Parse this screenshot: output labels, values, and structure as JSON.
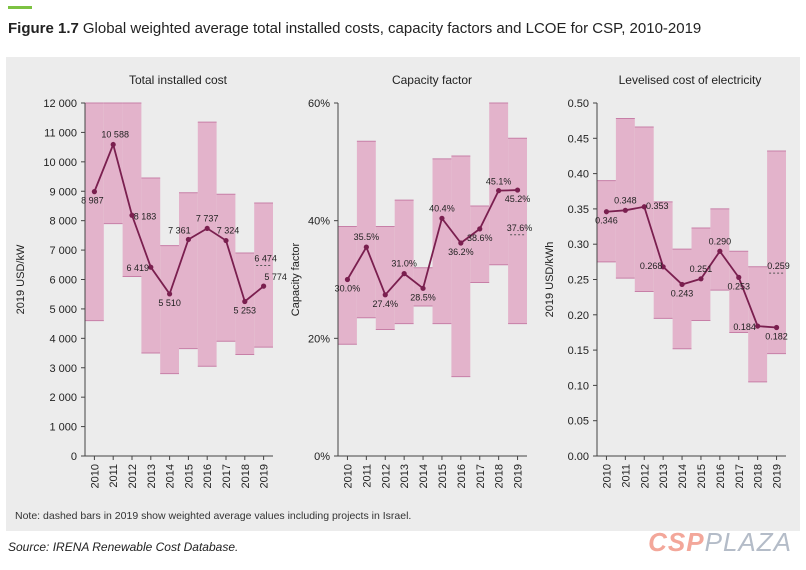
{
  "figure": {
    "label": "Figure 1.7",
    "title": "Global weighted average total installed costs, capacity factors and LCOE for CSP, 2010-2019",
    "note": "Note: dashed bars in 2019 show weighted average values including projects in Israel.",
    "source": "Source: IRENA Renewable Cost Database.",
    "watermark_a": "CSP",
    "watermark_b": "PLAZA"
  },
  "colors": {
    "band": "#e3b3cb",
    "band_edge": "#c77fa7",
    "line": "#7a1f4f",
    "panel": "#ececec"
  },
  "chart_data": [
    {
      "type": "line",
      "title": "Total installed cost",
      "ylabel": "2019 USD/kW",
      "ylim": [
        0,
        12000
      ],
      "yticks": [
        0,
        1000,
        2000,
        3000,
        4000,
        5000,
        6000,
        7000,
        8000,
        9000,
        10000,
        11000,
        12000
      ],
      "ytick_labels": [
        "0",
        "1 000",
        "2 000",
        "3 000",
        "4 000",
        "5 000",
        "6 000",
        "7 000",
        "8 000",
        "9 000",
        "10 000",
        "11 000",
        "12 000"
      ],
      "categories": [
        "2010",
        "2011",
        "2012",
        "2013",
        "2014",
        "2015",
        "2016",
        "2017",
        "2018",
        "2019"
      ],
      "values": [
        8987,
        10588,
        8183,
        6419,
        5510,
        7361,
        7737,
        7324,
        5253,
        5774
      ],
      "labels": [
        "8 987",
        "10 588",
        "8 183",
        "6 419",
        "5 510",
        "7 361",
        "7 737",
        "7 324",
        "5 253",
        "5 774"
      ],
      "range_low": [
        4600,
        7900,
        6100,
        3500,
        2800,
        3650,
        3050,
        3900,
        3450,
        3700
      ],
      "range_high": [
        12000,
        12000,
        12000,
        9450,
        7150,
        8950,
        11350,
        8900,
        6900,
        8600
      ],
      "israel_value": 6474,
      "israel_label": "6 474"
    },
    {
      "type": "line",
      "title": "Capacity factor",
      "ylabel": "Capacity factor",
      "ylim": [
        0,
        0.6
      ],
      "yticks": [
        0,
        0.2,
        0.4,
        0.6
      ],
      "ytick_labels": [
        "0%",
        "20%",
        "40%",
        "60%"
      ],
      "categories": [
        "2010",
        "2011",
        "2012",
        "2013",
        "2014",
        "2015",
        "2016",
        "2017",
        "2018",
        "2019"
      ],
      "values": [
        0.3,
        0.355,
        0.274,
        0.31,
        0.285,
        0.404,
        0.362,
        0.386,
        0.451,
        0.452
      ],
      "labels": [
        "30.0%",
        "35.5%",
        "27.4%",
        "31.0%",
        "28.5%",
        "40.4%",
        "36.2%",
        "38.6%",
        "45.1%",
        "45.2%"
      ],
      "range_low": [
        0.19,
        0.235,
        0.215,
        0.225,
        0.255,
        0.225,
        0.135,
        0.295,
        0.325,
        0.225
      ],
      "range_high": [
        0.39,
        0.535,
        0.39,
        0.435,
        0.32,
        0.505,
        0.51,
        0.425,
        0.6,
        0.54
      ],
      "israel_value": 0.376,
      "israel_label": "37.6%"
    },
    {
      "type": "line",
      "title": "Levelised cost of electricity",
      "ylabel": "2019 USD/kWh",
      "ylim": [
        0,
        0.5
      ],
      "yticks": [
        0,
        0.05,
        0.1,
        0.15,
        0.2,
        0.25,
        0.3,
        0.35,
        0.4,
        0.45,
        0.5
      ],
      "ytick_labels": [
        "0.00",
        "0.05",
        "0.10",
        "0.15",
        "0.20",
        "0.25",
        "0.30",
        "0.35",
        "0.40",
        "0.45",
        "0.50"
      ],
      "categories": [
        "2010",
        "2011",
        "2012",
        "2013",
        "2014",
        "2015",
        "2016",
        "2017",
        "2018",
        "2019"
      ],
      "values": [
        0.346,
        0.348,
        0.353,
        0.268,
        0.243,
        0.251,
        0.29,
        0.253,
        0.184,
        0.182
      ],
      "labels": [
        "0.346",
        "0.348",
        "0.353",
        "0.268",
        "0.243",
        "0.251",
        "0.290",
        "0.253",
        "0.184",
        "0.182"
      ],
      "range_low": [
        0.275,
        0.252,
        0.233,
        0.195,
        0.152,
        0.192,
        0.235,
        0.175,
        0.105,
        0.145
      ],
      "range_high": [
        0.39,
        0.478,
        0.466,
        0.36,
        0.293,
        0.323,
        0.35,
        0.29,
        0.268,
        0.432
      ],
      "israel_value": 0.259,
      "israel_label": "0.259"
    }
  ]
}
